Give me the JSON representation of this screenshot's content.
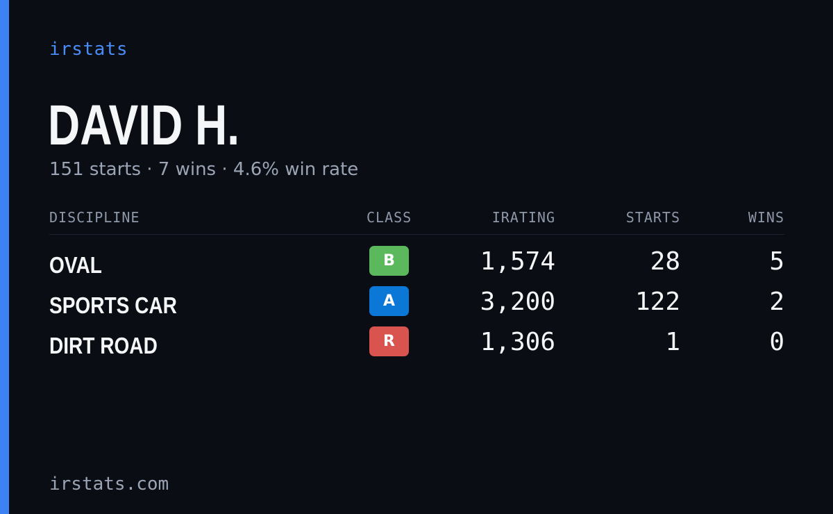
{
  "brand": "irstats",
  "player": {
    "name": "DAVID H.",
    "summary": "151 starts · 7 wins · 4.6% win rate"
  },
  "table": {
    "headers": {
      "discipline": "DISCIPLINE",
      "class": "CLASS",
      "irating": "IRATING",
      "starts": "STARTS",
      "wins": "WINS"
    },
    "rows": [
      {
        "discipline": "OVAL",
        "class": "B",
        "class_color": "#5bb85d",
        "irating": "1,574",
        "starts": "28",
        "wins": "5"
      },
      {
        "discipline": "SPORTS CAR",
        "class": "A",
        "class_color": "#0b78d8",
        "irating": "3,200",
        "starts": "122",
        "wins": "2"
      },
      {
        "discipline": "DIRT ROAD",
        "class": "R",
        "class_color": "#d9534f",
        "irating": "1,306",
        "starts": "1",
        "wins": "0"
      }
    ]
  },
  "footer": "irstats.com",
  "colors": {
    "background": "#0a0d14",
    "accent": "#3d82f2",
    "brand": "#4a8cf7",
    "muted_text": "#9aa4b4"
  }
}
